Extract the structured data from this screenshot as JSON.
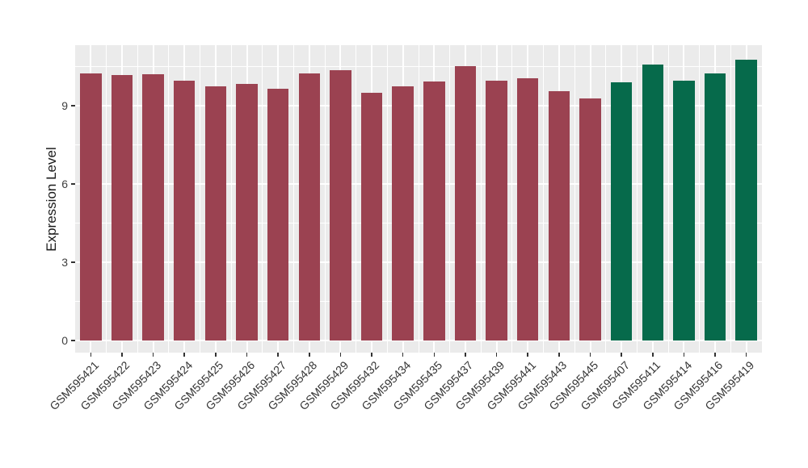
{
  "figure": {
    "background": "#ffffff",
    "panel_background": "#EBEBEB",
    "grid_color": "#ffffff",
    "tick_color": "#333333",
    "axis_text_color": "#404040",
    "axis_title_color": "#1a1a1a"
  },
  "chart_data": {
    "type": "bar",
    "title": "",
    "xlabel": "",
    "ylabel": "Expression Level",
    "legend_position": "none",
    "grid": true,
    "ylim": [
      -0.46,
      11.32
    ],
    "ytick_labels": [
      "0",
      "3",
      "6",
      "9"
    ],
    "ytick_values": [
      0,
      3,
      6,
      9
    ],
    "y_minor_values": [
      1.5,
      4.5,
      7.5,
      10.5
    ],
    "group_colors": {
      "group1": "#9B4251",
      "group2": "#066A4B"
    },
    "categories": [
      "GSM595421",
      "GSM595422",
      "GSM595423",
      "GSM595424",
      "GSM595425",
      "GSM595426",
      "GSM595427",
      "GSM595428",
      "GSM595429",
      "GSM595432",
      "GSM595434",
      "GSM595435",
      "GSM595437",
      "GSM595439",
      "GSM595441",
      "GSM595443",
      "GSM595445",
      "GSM595407",
      "GSM595411",
      "GSM595414",
      "GSM595416",
      "GSM595419"
    ],
    "values": [
      10.25,
      10.19,
      10.22,
      9.95,
      9.75,
      9.83,
      9.65,
      10.23,
      10.37,
      9.5,
      9.74,
      9.92,
      10.52,
      9.95,
      10.06,
      9.55,
      9.27,
      9.9,
      10.58,
      9.97,
      10.25,
      10.77
    ],
    "groups": [
      "group1",
      "group1",
      "group1",
      "group1",
      "group1",
      "group1",
      "group1",
      "group1",
      "group1",
      "group1",
      "group1",
      "group1",
      "group1",
      "group1",
      "group1",
      "group1",
      "group1",
      "group2",
      "group2",
      "group2",
      "group2",
      "group2"
    ]
  }
}
